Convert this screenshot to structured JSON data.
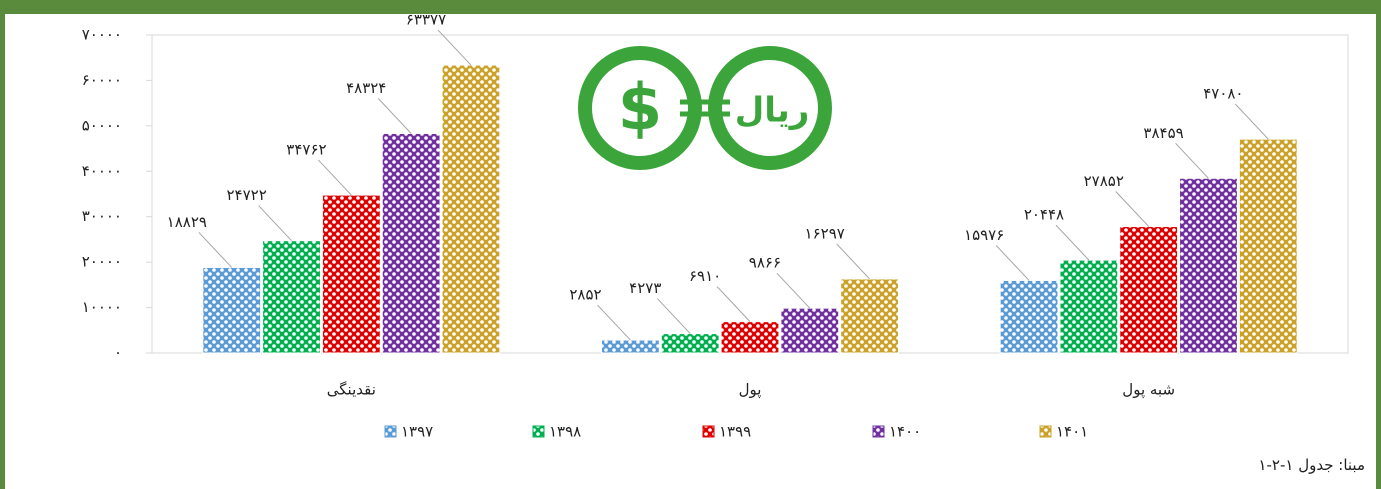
{
  "chart_data": {
    "type": "bar",
    "categories": [
      "نقدینگی",
      "پول",
      "شبه پول"
    ],
    "series": [
      {
        "name": "۱۳۹۷",
        "color": "#5b9bd5",
        "values": [
          18829,
          2852,
          15976
        ],
        "value_labels": [
          "۱۸۸۲۹",
          "۲۸۵۲",
          "۱۵۹۷۶"
        ]
      },
      {
        "name": "۱۳۹۸",
        "color": "#00b050",
        "values": [
          24722,
          4273,
          20448
        ],
        "value_labels": [
          "۲۴۷۲۲",
          "۴۲۷۳",
          "۲۰۴۴۸"
        ]
      },
      {
        "name": "۱۳۹۹",
        "color": "#e00000",
        "values": [
          34762,
          6910,
          27852
        ],
        "value_labels": [
          "۳۴۷۶۲",
          "۶۹۱۰",
          "۲۷۸۵۲"
        ]
      },
      {
        "name": "۱۴۰۰",
        "color": "#7030a0",
        "values": [
          48324,
          9866,
          38459
        ],
        "value_labels": [
          "۴۸۳۲۴",
          "۹۸۶۶",
          "۳۸۴۵۹"
        ]
      },
      {
        "name": "۱۴۰۱",
        "color": "#c9a227",
        "values": [
          63377,
          16297,
          47080
        ],
        "value_labels": [
          "۶۳۳۷۷",
          "۱۶۲۹۷",
          "۴۷۰۸۰"
        ]
      }
    ],
    "ylim": [
      0,
      70000
    ],
    "yticks": [
      {
        "value": 0,
        "label": "۰"
      },
      {
        "value": 10000,
        "label": "۱۰۰۰۰"
      },
      {
        "value": 20000,
        "label": "۲۰۰۰۰"
      },
      {
        "value": 30000,
        "label": "۳۰۰۰۰"
      },
      {
        "value": 40000,
        "label": "۴۰۰۰۰"
      },
      {
        "value": 50000,
        "label": "۵۰۰۰۰"
      },
      {
        "value": 60000,
        "label": "۶۰۰۰۰"
      },
      {
        "value": 70000,
        "label": "۷۰۰۰۰"
      }
    ],
    "grid": false,
    "legend": "bottom",
    "source": "مبنا: جدول ۱-۲-۱"
  }
}
